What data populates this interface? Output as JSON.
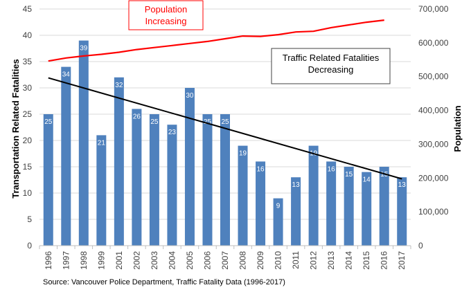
{
  "chart_data": {
    "type": "bar",
    "title": "",
    "xlabel": "",
    "ylabel": "Transportation Related Fatalities",
    "y2label": "Population",
    "ylim": [
      0,
      45
    ],
    "y2lim": [
      0,
      700000
    ],
    "yticks": [
      0,
      5,
      10,
      15,
      20,
      25,
      30,
      35,
      40,
      45
    ],
    "y2ticks": [
      "0",
      "100,000",
      "200,000",
      "300,000",
      "400,000",
      "500,000",
      "600,000",
      "700,000"
    ],
    "grid": true,
    "categories": [
      "1996",
      "1997",
      "1998",
      "1999",
      "2001",
      "2002",
      "2003",
      "2004",
      "2005",
      "2006",
      "2007",
      "2008",
      "2009",
      "2010",
      "2011",
      "2012",
      "2013",
      "2014",
      "2015",
      "2016",
      "2017"
    ],
    "series": [
      {
        "name": "Transportation Related Fatalities",
        "type": "bar",
        "axis": "left",
        "color": "#4f81bd",
        "values": [
          25,
          34,
          39,
          21,
          32,
          26,
          25,
          23,
          30,
          25,
          25,
          19,
          16,
          9,
          13,
          19,
          16,
          15,
          14,
          15,
          13
        ]
      },
      {
        "name": "Fatalities Trend",
        "type": "line",
        "axis": "left",
        "color": "#000000",
        "values_endpoints": [
          31.9,
          12.7
        ]
      },
      {
        "name": "Population",
        "type": "line",
        "axis": "right",
        "color": "#ff0000",
        "values": [
          546000,
          555000,
          561000,
          566000,
          572000,
          580000,
          586000,
          592000,
          598000,
          604000,
          612000,
          620000,
          619000,
          624000,
          632000,
          634000,
          645000,
          653000,
          661000,
          667000,
          null
        ]
      }
    ],
    "annotations": [
      {
        "text": [
          "Population",
          "Increasing"
        ],
        "color": "#ff0000"
      },
      {
        "text": [
          "Traffic Related Fatalities",
          "Decreasing"
        ],
        "color": "#000000"
      }
    ],
    "source": "Source: Vancouver Police Department, Traffic Fatality Data (1996-2017)"
  }
}
